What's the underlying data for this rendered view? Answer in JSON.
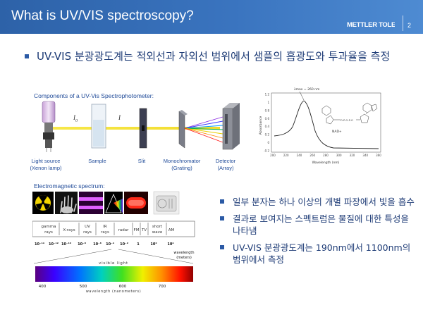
{
  "header": {
    "title": "What is UV/VIS spectroscopy?",
    "logo_text": "METTLER TOLEDO",
    "page_number": "2"
  },
  "main_bullet": "UV-VIS 분광광도계는 적외선과 자외선 범위에서 샘플의 흡광도와 투과율을 측정",
  "diagram": {
    "title": "Components of a UV-Vis Spectrophotometer:",
    "beam_labels": {
      "i0": "I",
      "i0_sub": "0",
      "i": "I"
    },
    "components": [
      {
        "label": "Light source",
        "sub": "(Xenon lamp)"
      },
      {
        "label": "Sample",
        "sub": ""
      },
      {
        "label": "Slit",
        "sub": ""
      },
      {
        "label": "Monochromator",
        "sub": "(Grating)"
      },
      {
        "label": "Detector",
        "sub": "(Array)"
      }
    ]
  },
  "absorbance_chart": {
    "peak_label": "λmax = 260 nm",
    "ylabel": "Absorbance",
    "xlabel": "Wavelength (nm)",
    "molecule_label": "NAD+",
    "yticks": [
      "1.2",
      "1",
      "0.8",
      "0.6",
      "0.4",
      "0.2",
      "0",
      "-0.2"
    ],
    "xticks": [
      "200",
      "220",
      "240",
      "260",
      "280",
      "300",
      "320",
      "340",
      "360"
    ],
    "curve_color": "#222222"
  },
  "em_spectrum": {
    "title": "Electromagnetic spectrum:",
    "bands": [
      {
        "line1": "gamma",
        "line2": "rays"
      },
      {
        "line1": "X-rays",
        "line2": ""
      },
      {
        "line1": "UV",
        "line2": "rays"
      },
      {
        "line1": "IR",
        "line2": "rays"
      },
      {
        "line1": "radar",
        "line2": ""
      },
      {
        "line1": "FM",
        "line2": ""
      },
      {
        "line1": "TV",
        "line2": ""
      },
      {
        "line1": "short",
        "line2": "wave"
      },
      {
        "line1": "AM",
        "line2": ""
      }
    ],
    "scale": [
      "10⁻¹⁴",
      "10⁻¹²",
      "10⁻¹⁰",
      "10⁻⁸",
      "10⁻⁶",
      "10⁻⁴",
      "10⁻²",
      "1",
      "10²",
      "10⁴"
    ],
    "scale_unit": [
      "wavelength",
      "(meters)"
    ],
    "visible_label": "visible light",
    "visible_ticks": [
      "400",
      "500",
      "600",
      "700"
    ],
    "visible_axis_label": "wavelength (nanometers)"
  },
  "side_bullets": [
    "일부 분자는 하나 이상의 개별 파장에서 빛을 흡수",
    "결과로 보여지는 스펙트럼은 물질에 대한 특성을 나타냄",
    "UV-VIS 분광광도계는 190nm에서 1100nm의 범위에서 측정"
  ],
  "colors": {
    "header": "#3a74bf",
    "text": "#1c3a75",
    "accent": "#1f4a98"
  }
}
